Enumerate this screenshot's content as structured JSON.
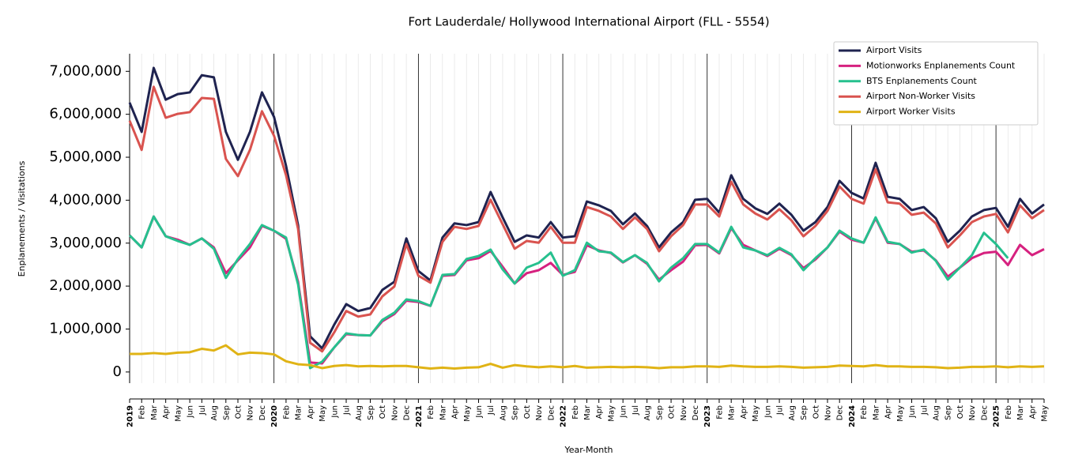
{
  "chart_data": {
    "type": "line",
    "title": "Fort Lauderdale/ Hollywood International Airport (FLL - 5554)",
    "x_label": "Year-Month",
    "y_label": "Enplanements / Visitations",
    "categories": [
      "2019",
      "Feb",
      "Mar",
      "Apr",
      "May",
      "Jun",
      "Jul",
      "Aug",
      "Sep",
      "Oct",
      "Nov",
      "Dec",
      "2020",
      "Feb",
      "Mar",
      "Apr",
      "May",
      "Jun",
      "Jul",
      "Aug",
      "Sep",
      "Oct",
      "Nov",
      "Dec",
      "2021",
      "Feb",
      "Mar",
      "Apr",
      "May",
      "Jun",
      "Jul",
      "Aug",
      "Sep",
      "Oct",
      "Nov",
      "Dec",
      "2022",
      "Feb",
      "Mar",
      "Apr",
      "May",
      "Jun",
      "Jul",
      "Aug",
      "Sep",
      "Oct",
      "Nov",
      "Dec",
      "2023",
      "Feb",
      "Mar",
      "Apr",
      "May",
      "Jun",
      "Jul",
      "Aug",
      "Sep",
      "Oct",
      "Nov",
      "Dec",
      "2024",
      "Feb",
      "Mar",
      "Apr",
      "May",
      "Jun",
      "Jul",
      "Aug",
      "Sep",
      "Oct",
      "Nov",
      "Dec",
      "2025",
      "Feb",
      "Mar",
      "Apr",
      "May"
    ],
    "series": [
      {
        "name": "Airport Visits",
        "color": "#1f2350",
        "values": [
          6270000,
          5590000,
          7080000,
          6340000,
          6470000,
          6510000,
          6910000,
          6860000,
          5590000,
          4940000,
          5590000,
          6510000,
          5940000,
          4800000,
          3420000,
          830000,
          550000,
          1100000,
          1580000,
          1420000,
          1490000,
          1910000,
          2100000,
          3110000,
          2350000,
          2130000,
          3130000,
          3460000,
          3420000,
          3490000,
          4190000,
          3600000,
          3030000,
          3180000,
          3130000,
          3490000,
          3130000,
          3160000,
          3970000,
          3880000,
          3750000,
          3440000,
          3690000,
          3400000,
          2900000,
          3250000,
          3490000,
          4010000,
          4030000,
          3710000,
          4580000,
          4030000,
          3810000,
          3680000,
          3920000,
          3660000,
          3290000,
          3490000,
          3840000,
          4450000,
          4170000,
          4040000,
          4870000,
          4080000,
          4030000,
          3770000,
          3840000,
          3580000,
          3030000,
          3290000,
          3620000,
          3770000,
          3820000,
          3380000,
          4030000,
          3690000,
          3900000
        ]
      },
      {
        "name": "Motionworks Enplanements Count",
        "color": "#d6217f",
        "values": [
          3180000,
          2900000,
          3620000,
          3160000,
          3080000,
          2960000,
          3110000,
          2900000,
          2300000,
          2600000,
          2900000,
          3400000,
          3290000,
          3100000,
          2100000,
          220000,
          200000,
          570000,
          880000,
          860000,
          850000,
          1180000,
          1350000,
          1660000,
          1630000,
          1540000,
          2240000,
          2260000,
          2600000,
          2650000,
          2820000,
          2450000,
          2060000,
          2300000,
          2370000,
          2540000,
          2260000,
          2330000,
          2950000,
          2830000,
          2770000,
          2550000,
          2720000,
          2520000,
          2150000,
          2370000,
          2570000,
          2950000,
          2960000,
          2760000,
          3350000,
          2960000,
          2830000,
          2700000,
          2870000,
          2720000,
          2420000,
          2620000,
          2900000,
          3270000,
          3080000,
          3010000,
          3580000,
          3010000,
          2980000,
          2800000,
          2830000,
          2600000,
          2220000,
          2430000,
          2650000,
          2770000,
          2800000,
          2490000,
          2960000,
          2720000,
          2860000
        ]
      },
      {
        "name": "BTS Enplanements Count",
        "color": "#26c08e",
        "values": [
          3180000,
          2900000,
          3620000,
          3160000,
          3050000,
          2960000,
          3110000,
          2870000,
          2190000,
          2630000,
          2980000,
          3420000,
          3290000,
          3130000,
          2040000,
          90000,
          240000,
          570000,
          900000,
          860000,
          850000,
          1210000,
          1380000,
          1690000,
          1650000,
          1540000,
          2260000,
          2280000,
          2630000,
          2700000,
          2850000,
          2390000,
          2060000,
          2430000,
          2540000,
          2780000,
          2240000,
          2370000,
          3010000,
          2810000,
          2780000,
          2560000,
          2720000,
          2540000,
          2110000,
          2430000,
          2650000,
          2980000,
          2980000,
          2780000,
          3380000,
          2900000,
          2830000,
          2720000,
          2890000,
          2740000,
          2370000,
          2650000,
          2900000,
          3290000,
          3110000,
          3010000,
          3600000,
          3030000,
          2980000,
          2780000,
          2850000,
          2590000,
          2150000,
          2430000,
          2720000,
          3240000,
          2980000,
          2650000,
          null,
          null,
          null
        ]
      },
      {
        "name": "Airport Non-Worker Visits",
        "color": "#d9534f",
        "values": [
          5850000,
          5170000,
          6640000,
          5920000,
          6010000,
          6050000,
          6380000,
          6360000,
          4960000,
          4560000,
          5170000,
          6070000,
          5500000,
          4580000,
          3330000,
          680000,
          480000,
          920000,
          1420000,
          1290000,
          1340000,
          1760000,
          1990000,
          2980000,
          2240000,
          2080000,
          3030000,
          3380000,
          3330000,
          3400000,
          4010000,
          3440000,
          2870000,
          3050000,
          3010000,
          3380000,
          3010000,
          3010000,
          3840000,
          3750000,
          3620000,
          3330000,
          3600000,
          3330000,
          2810000,
          3160000,
          3420000,
          3900000,
          3900000,
          3620000,
          4430000,
          3900000,
          3690000,
          3550000,
          3790000,
          3530000,
          3160000,
          3400000,
          3750000,
          4320000,
          4030000,
          3920000,
          4720000,
          3950000,
          3920000,
          3660000,
          3710000,
          3460000,
          2900000,
          3180000,
          3490000,
          3620000,
          3680000,
          3250000,
          3880000,
          3580000,
          3770000
        ]
      },
      {
        "name": "Airport Worker Visits",
        "color": "#e0b315",
        "values": [
          420000,
          420000,
          440000,
          420000,
          450000,
          460000,
          540000,
          500000,
          620000,
          410000,
          450000,
          440000,
          410000,
          250000,
          180000,
          160000,
          90000,
          140000,
          160000,
          130000,
          140000,
          130000,
          140000,
          140000,
          110000,
          80000,
          100000,
          80000,
          100000,
          110000,
          190000,
          100000,
          160000,
          130000,
          110000,
          130000,
          110000,
          140000,
          100000,
          110000,
          120000,
          110000,
          120000,
          110000,
          90000,
          110000,
          110000,
          130000,
          130000,
          120000,
          150000,
          130000,
          120000,
          120000,
          130000,
          120000,
          100000,
          110000,
          120000,
          150000,
          140000,
          130000,
          160000,
          130000,
          130000,
          120000,
          120000,
          110000,
          90000,
          100000,
          120000,
          120000,
          130000,
          110000,
          130000,
          120000,
          130000
        ]
      }
    ],
    "ylim": [
      -260000,
      7410000
    ],
    "yticks": [
      0,
      {
        "value": 1000000,
        "label": "1,000,000"
      },
      {
        "value": 2000000,
        "label": "2,000,000"
      },
      {
        "value": 3000000,
        "label": "3,000,000"
      },
      {
        "value": 4000000,
        "label": "4,000,000"
      },
      {
        "value": 5000000,
        "label": "5,000,000"
      },
      {
        "value": 6000000,
        "label": "6,000,000"
      },
      {
        "value": 7000000,
        "label": "7,000,000"
      }
    ],
    "grid": true,
    "legend": "upper right"
  }
}
